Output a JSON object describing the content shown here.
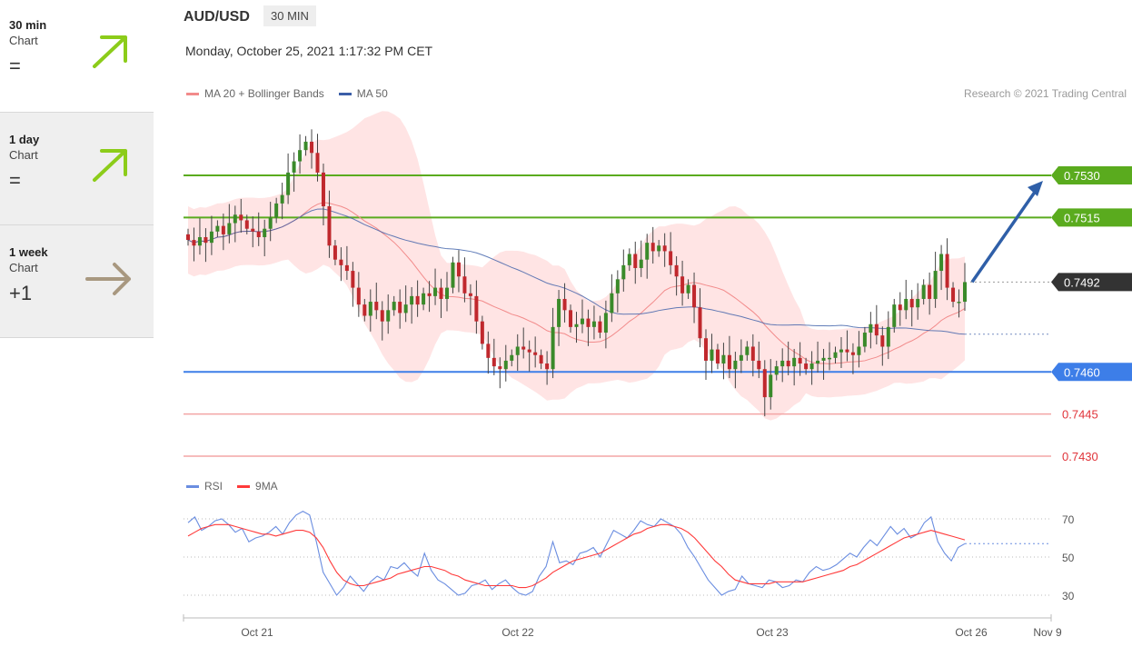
{
  "sidebar": {
    "items": [
      {
        "title": "30 min",
        "sub": "Chart",
        "value": "=",
        "trend": "up",
        "color": "#8ccc1a"
      },
      {
        "title": "1 day",
        "sub": "Chart",
        "value": "=",
        "trend": "up",
        "color": "#8ccc1a"
      },
      {
        "title": "1 week",
        "sub": "Chart",
        "value": "+1",
        "trend": "flat",
        "color": "#a89880"
      }
    ]
  },
  "header": {
    "pair": "AUD/USD",
    "timeframe": "30 MIN",
    "datetime": "Monday, October 25, 2021 1:17:32 PM CET",
    "credit": "Research © 2021 Trading Central"
  },
  "legend": {
    "ma20": "MA 20 + Bollinger Bands",
    "ma50": "MA 50",
    "rsi": "RSI",
    "ma9": "9MA"
  },
  "colors": {
    "ma20": "#f28b8b",
    "ma50": "#3b5ea8",
    "band": "#ffe4e4",
    "up": "#3a8a2a",
    "down": "#c0282d",
    "resistance": "#5aab1e",
    "support": "#3d7ee8",
    "lowline": "#f3a5a5",
    "current": "#333333",
    "rsi": "#6a8de0",
    "rsima": "#ff3a3a"
  },
  "chart_data": [
    {
      "type": "candlestick",
      "title": "AUD/USD",
      "ylim": [
        0.742,
        0.755
      ],
      "x_ticks": [
        "Oct 21",
        "Oct 22",
        "Oct 23",
        "Oct 26",
        "Nov 9"
      ],
      "levels": [
        {
          "value": 0.753,
          "label": "0.7530",
          "kind": "resistance"
        },
        {
          "value": 0.7515,
          "label": "0.7515",
          "kind": "resistance"
        },
        {
          "value": 0.7492,
          "label": "0.7492",
          "kind": "current"
        },
        {
          "value": 0.746,
          "label": "0.7460",
          "kind": "support"
        },
        {
          "value": 0.7445,
          "label": "0.7445",
          "kind": "low"
        },
        {
          "value": 0.743,
          "label": "0.7430",
          "kind": "low"
        }
      ],
      "forecast_target": 0.753,
      "closes": [
        0.7507,
        0.7505,
        0.7508,
        0.7506,
        0.751,
        0.7512,
        0.7509,
        0.7513,
        0.7516,
        0.7514,
        0.7511,
        0.751,
        0.7508,
        0.7511,
        0.7515,
        0.752,
        0.7523,
        0.7531,
        0.7535,
        0.7539,
        0.7542,
        0.7538,
        0.7531,
        0.7519,
        0.7505,
        0.75,
        0.7498,
        0.7496,
        0.749,
        0.7484,
        0.748,
        0.7485,
        0.7482,
        0.7478,
        0.7482,
        0.7485,
        0.7481,
        0.7484,
        0.7487,
        0.7484,
        0.7488,
        0.7487,
        0.749,
        0.7486,
        0.749,
        0.7499,
        0.7494,
        0.7488,
        0.7487,
        0.7478,
        0.747,
        0.7465,
        0.7462,
        0.7461,
        0.7464,
        0.7466,
        0.7469,
        0.7468,
        0.7467,
        0.7466,
        0.7463,
        0.7461,
        0.7476,
        0.7486,
        0.7482,
        0.7476,
        0.7477,
        0.7479,
        0.7476,
        0.7478,
        0.7474,
        0.7481,
        0.7488,
        0.7493,
        0.7498,
        0.7502,
        0.7497,
        0.75,
        0.7506,
        0.7503,
        0.7505,
        0.7503,
        0.7498,
        0.7494,
        0.7488,
        0.7491,
        0.7483,
        0.7472,
        0.7464,
        0.7468,
        0.7463,
        0.7466,
        0.7461,
        0.7464,
        0.7466,
        0.7469,
        0.7464,
        0.7461,
        0.7451,
        0.7459,
        0.7462,
        0.7464,
        0.7462,
        0.7465,
        0.7463,
        0.7461,
        0.7463,
        0.7464,
        0.7465,
        0.7465,
        0.7467,
        0.7468,
        0.7467,
        0.7466,
        0.7469,
        0.7474,
        0.7477,
        0.7473,
        0.7469,
        0.7476,
        0.7484,
        0.7482,
        0.7486,
        0.7483,
        0.7486,
        0.7491,
        0.7486,
        0.7496,
        0.7502,
        0.749,
        0.7485,
        0.7485,
        0.7492
      ]
    },
    {
      "type": "line",
      "title": "RSI",
      "ylim": [
        20,
        80
      ],
      "y_ticks": [
        70,
        50,
        30
      ],
      "series": [
        {
          "name": "RSI",
          "values": [
            68,
            71,
            64,
            66,
            69,
            70,
            67,
            63,
            65,
            58,
            60,
            61,
            63,
            66,
            62,
            68,
            72,
            74,
            72,
            58,
            42,
            36,
            30,
            34,
            40,
            36,
            32,
            37,
            40,
            38,
            45,
            44,
            47,
            43,
            40,
            52,
            43,
            38,
            36,
            33,
            30,
            31,
            35,
            36,
            38,
            33,
            36,
            38,
            34,
            31,
            30,
            32,
            40,
            45,
            58,
            47,
            48,
            46,
            52,
            53,
            55,
            50,
            57,
            64,
            62,
            60,
            64,
            69,
            67,
            66,
            70,
            68,
            66,
            62,
            55,
            50,
            44,
            38,
            34,
            30,
            32,
            33,
            40,
            36,
            35,
            34,
            38,
            37,
            34,
            35,
            38,
            37,
            42,
            45,
            43,
            44,
            46,
            49,
            52,
            50,
            55,
            59,
            56,
            61,
            66,
            62,
            65,
            60,
            62,
            68,
            71,
            58,
            52,
            48,
            55,
            57
          ]
        },
        {
          "name": "9MA",
          "values": [
            61,
            63,
            65,
            66,
            67,
            67,
            67,
            66,
            65,
            64,
            63,
            62,
            62,
            61,
            62,
            63,
            64,
            64,
            63,
            60,
            55,
            48,
            42,
            38,
            36,
            35,
            35,
            36,
            37,
            38,
            39,
            41,
            42,
            43,
            44,
            45,
            45,
            44,
            43,
            41,
            40,
            38,
            37,
            36,
            35,
            35,
            35,
            35,
            35,
            34,
            34,
            35,
            37,
            39,
            42,
            44,
            46,
            48,
            49,
            50,
            51,
            52,
            54,
            56,
            58,
            60,
            62,
            63,
            65,
            66,
            67,
            67,
            66,
            65,
            63,
            60,
            56,
            52,
            48,
            45,
            41,
            38,
            37,
            36,
            36,
            36,
            36,
            37,
            37,
            37,
            37,
            37,
            38,
            39,
            40,
            41,
            42,
            43,
            45,
            46,
            48,
            50,
            52,
            54,
            56,
            58,
            60,
            61,
            62,
            63,
            64,
            63,
            62,
            61,
            60,
            59
          ]
        }
      ]
    }
  ]
}
